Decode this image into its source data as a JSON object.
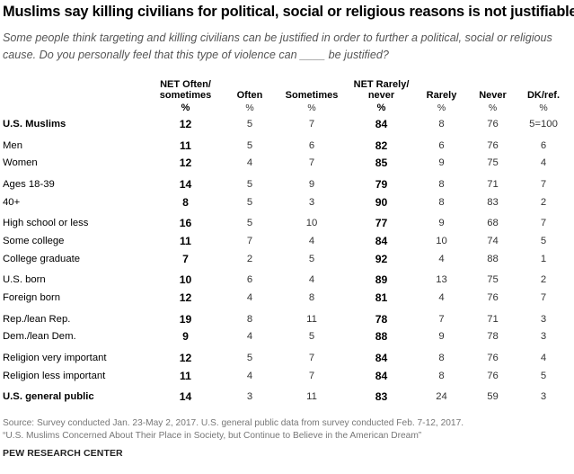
{
  "title": "Muslims say killing civilians for political, social or religious reasons is not justifiable",
  "subtitle": "Some people think targeting and killing civilians can be justified in order to further a political, social or religious cause. Do you personally feel that this type of violence can ____ be justified?",
  "chart_data": {
    "type": "table",
    "columns": [
      {
        "line1": "NET Often/",
        "line2": "sometimes",
        "unit": "%"
      },
      {
        "line1": "",
        "line2": "Often",
        "unit": "%"
      },
      {
        "line1": "",
        "line2": "Sometimes",
        "unit": "%"
      },
      {
        "line1": "NET Rarely/",
        "line2": "never",
        "unit": "%"
      },
      {
        "line1": "",
        "line2": "Rarely",
        "unit": "%"
      },
      {
        "line1": "",
        "line2": "Never",
        "unit": "%"
      },
      {
        "line1": "",
        "line2": "DK/ref.",
        "unit": "%"
      }
    ],
    "rows": [
      {
        "label": "U.S. Muslims",
        "values": [
          "12",
          "5",
          "7",
          "84",
          "8",
          "76",
          "5=100"
        ]
      },
      {
        "label": "Men",
        "values": [
          "11",
          "5",
          "6",
          "82",
          "6",
          "76",
          "6"
        ]
      },
      {
        "label": "Women",
        "values": [
          "12",
          "4",
          "7",
          "85",
          "9",
          "75",
          "4"
        ]
      },
      {
        "label": "Ages 18-39",
        "values": [
          "14",
          "5",
          "9",
          "79",
          "8",
          "71",
          "7"
        ]
      },
      {
        "label": "40+",
        "values": [
          "8",
          "5",
          "3",
          "90",
          "8",
          "83",
          "2"
        ]
      },
      {
        "label": "High school or less",
        "values": [
          "16",
          "5",
          "10",
          "77",
          "9",
          "68",
          "7"
        ]
      },
      {
        "label": "Some college",
        "values": [
          "11",
          "7",
          "4",
          "84",
          "10",
          "74",
          "5"
        ]
      },
      {
        "label": "College graduate",
        "values": [
          "7",
          "2",
          "5",
          "92",
          "4",
          "88",
          "1"
        ]
      },
      {
        "label": "U.S. born",
        "values": [
          "10",
          "6",
          "4",
          "89",
          "13",
          "75",
          "2"
        ]
      },
      {
        "label": "Foreign born",
        "values": [
          "12",
          "4",
          "8",
          "81",
          "4",
          "76",
          "7"
        ]
      },
      {
        "label": "Rep./lean Rep.",
        "values": [
          "19",
          "8",
          "11",
          "78",
          "7",
          "71",
          "3"
        ]
      },
      {
        "label": "Dem./lean Dem.",
        "values": [
          "9",
          "4",
          "5",
          "88",
          "9",
          "78",
          "3"
        ]
      },
      {
        "label": "Religion very important",
        "values": [
          "12",
          "5",
          "7",
          "84",
          "8",
          "76",
          "4"
        ]
      },
      {
        "label": "Religion less important",
        "values": [
          "11",
          "4",
          "7",
          "84",
          "8",
          "76",
          "5"
        ]
      },
      {
        "label": "U.S. general public",
        "values": [
          "14",
          "3",
          "11",
          "83",
          "24",
          "59",
          "3"
        ]
      }
    ]
  },
  "source": "Source: Survey conducted Jan. 23-May 2, 2017. U.S. general public data from survey conducted Feb. 7-12, 2017.",
  "report": "“U.S. Muslims Concerned About Their Place in Society, but Continue to Believe in the American Dream”",
  "brand": "PEW RESEARCH CENTER"
}
